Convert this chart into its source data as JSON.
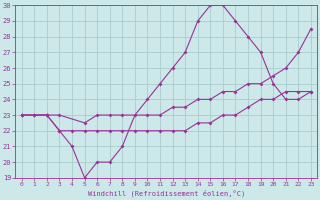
{
  "xlabel": "Windchill (Refroidissement éolien,°C)",
  "bg_color": "#cce8e8",
  "grid_color": "#aacccc",
  "line_color": "#993399",
  "ylim": [
    19,
    30
  ],
  "xlim": [
    -0.5,
    23.5
  ],
  "yticks": [
    19,
    20,
    21,
    22,
    23,
    24,
    25,
    26,
    27,
    28,
    29,
    30
  ],
  "xticks": [
    0,
    1,
    2,
    3,
    4,
    5,
    6,
    7,
    8,
    9,
    10,
    11,
    12,
    13,
    14,
    15,
    16,
    17,
    18,
    19,
    20,
    21,
    22,
    23
  ],
  "line1_x": [
    0,
    1,
    2,
    3,
    4,
    5,
    6,
    7,
    8,
    9,
    10,
    11,
    12,
    13,
    14,
    15,
    16,
    17,
    18,
    19,
    20,
    21,
    22,
    23
  ],
  "line1_y": [
    23,
    23,
    23,
    22,
    21,
    19,
    20,
    20,
    21,
    23,
    24,
    25,
    26,
    27,
    29,
    30,
    30,
    29,
    28,
    27,
    25,
    24,
    24,
    24.5
  ],
  "line2_x": [
    0,
    2,
    3,
    5,
    6,
    7,
    8,
    10,
    11,
    12,
    13,
    14,
    15,
    16,
    17,
    18,
    19,
    20,
    21,
    22,
    23
  ],
  "line2_y": [
    23,
    23,
    23,
    22.5,
    23,
    23,
    23,
    23,
    23,
    23.5,
    23.5,
    24,
    24,
    24.5,
    24.5,
    25,
    25,
    25.5,
    26,
    27,
    28.5
  ],
  "line3_x": [
    0,
    1,
    2,
    3,
    4,
    5,
    6,
    7,
    8,
    9,
    10,
    11,
    12,
    13,
    14,
    15,
    16,
    17,
    18,
    19,
    20,
    21,
    22,
    23
  ],
  "line3_y": [
    23,
    23,
    23,
    22,
    22,
    22,
    22,
    22,
    22,
    22,
    22,
    22,
    22,
    22,
    22.5,
    22.5,
    23,
    23,
    23.5,
    24,
    24,
    24.5,
    24.5,
    24.5
  ]
}
